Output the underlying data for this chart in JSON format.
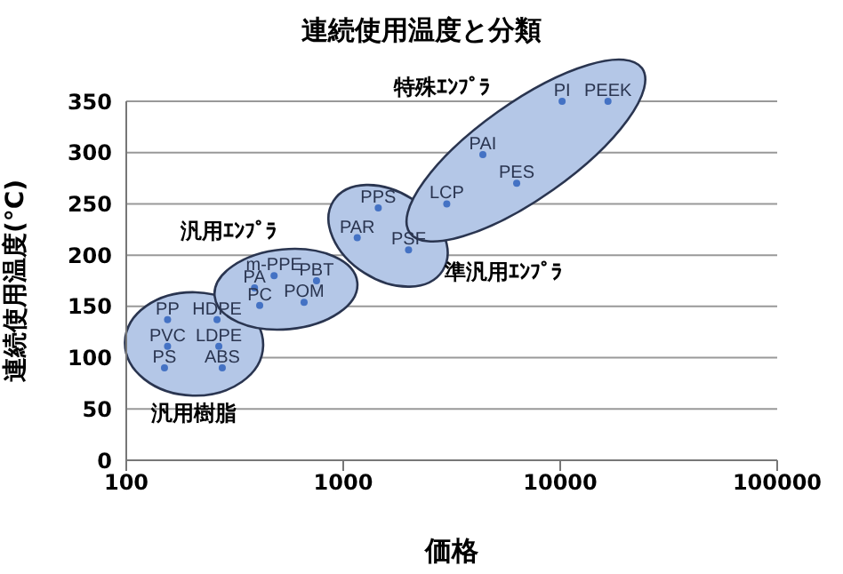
{
  "chart_data": {
    "type": "scatter",
    "title": "連続使用温度と分類",
    "xlabel": "価格",
    "ylabel": "連続使用温度(°C)",
    "log": "x",
    "xlim": [
      100,
      100000
    ],
    "xticks": [
      100,
      1000,
      10000,
      100000
    ],
    "ylim": [
      0,
      350
    ],
    "yticks": [
      0,
      50,
      100,
      150,
      200,
      250,
      300,
      350
    ],
    "grid": "y",
    "legend": false,
    "marker": "circle",
    "series": [
      {
        "name": "汎用樹脂",
        "color": "#4472c4",
        "x": [
          155,
          262,
          155,
          267,
          150,
          277
        ],
        "values": [
          137,
          137,
          111,
          111,
          90,
          90
        ]
      },
      {
        "name": "汎用ｴﾝﾌﾟﾗ",
        "color": "#4472c4",
        "x": [
          480,
          390,
          412,
          753,
          660
        ],
        "values": [
          180,
          168,
          151,
          175,
          154
        ]
      },
      {
        "name": "準汎用ｴﾝﾌﾟﾗ",
        "color": "#4472c4",
        "x": [
          1450,
          1160,
          2000
        ],
        "values": [
          246,
          217,
          205
        ]
      },
      {
        "name": "特殊ｴﾝﾌﾟﾗ",
        "color": "#4472c4",
        "x": [
          3000,
          4400,
          6300,
          10200,
          16600
        ],
        "values": [
          250,
          298,
          270,
          350,
          350
        ]
      }
    ],
    "annotations": [
      {
        "text": "PP",
        "x": 155,
        "y": 137
      },
      {
        "text": "HDPE",
        "x": 262,
        "y": 137
      },
      {
        "text": "PVC",
        "x": 155,
        "y": 111
      },
      {
        "text": "LDPE",
        "x": 267,
        "y": 111
      },
      {
        "text": "PS",
        "x": 150,
        "y": 90
      },
      {
        "text": "ABS",
        "x": 277,
        "y": 90
      },
      {
        "text": "m-PPE",
        "x": 480,
        "y": 180
      },
      {
        "text": "PA",
        "x": 390,
        "y": 168
      },
      {
        "text": "PC",
        "x": 412,
        "y": 151
      },
      {
        "text": "PBT",
        "x": 753,
        "y": 175
      },
      {
        "text": "POM",
        "x": 660,
        "y": 154
      },
      {
        "text": "PPS",
        "x": 1450,
        "y": 246
      },
      {
        "text": "PAR",
        "x": 1160,
        "y": 217
      },
      {
        "text": "PSF",
        "x": 2000,
        "y": 205
      },
      {
        "text": "LCP",
        "x": 3000,
        "y": 250
      },
      {
        "text": "PAI",
        "x": 4400,
        "y": 298
      },
      {
        "text": "PES",
        "x": 6300,
        "y": 270
      },
      {
        "text": "PI",
        "x": 10200,
        "y": 350
      },
      {
        "text": "PEEK",
        "x": 16600,
        "y": 350
      }
    ]
  }
}
